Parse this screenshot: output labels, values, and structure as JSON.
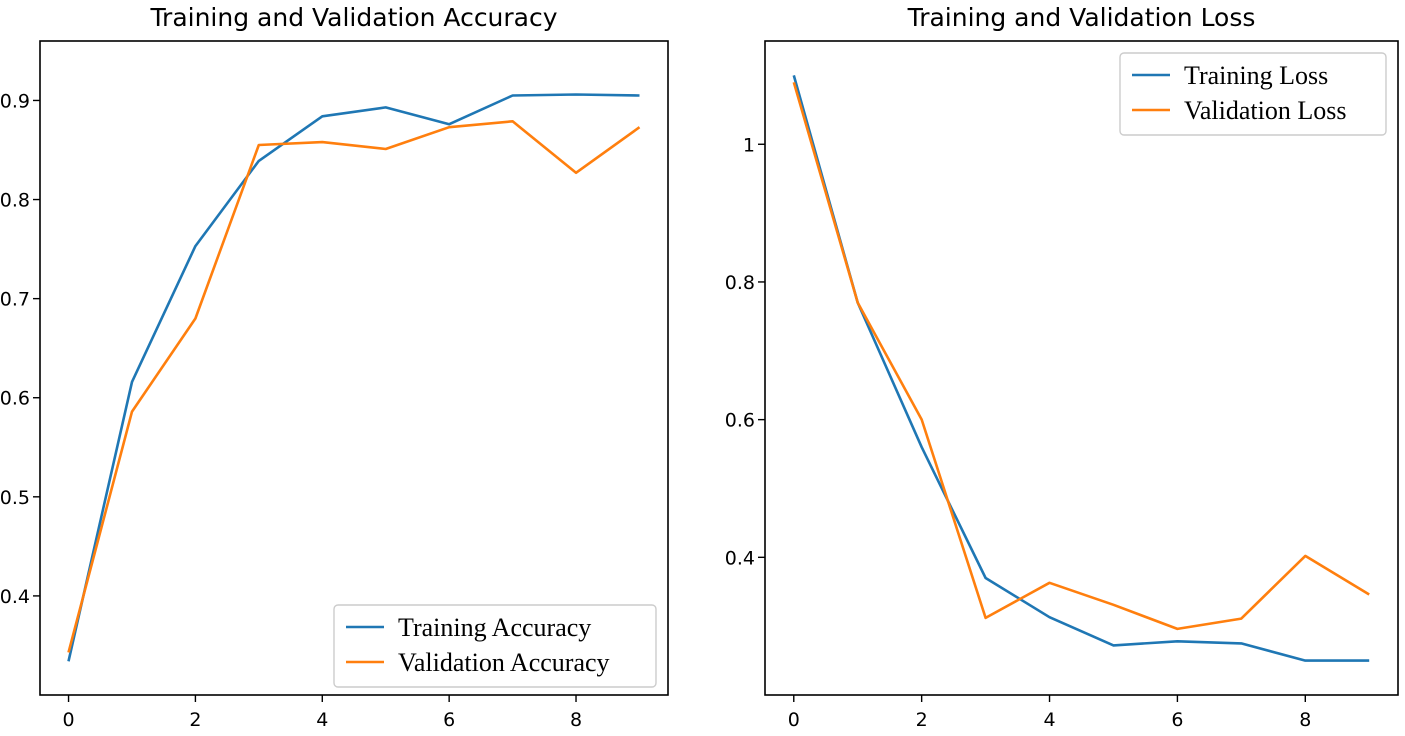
{
  "chart_data": [
    {
      "type": "line",
      "title": "Training and Validation Accuracy",
      "xlabel": "",
      "ylabel": "",
      "xlim": [
        -0.45,
        9.45
      ],
      "ylim": [
        0.3,
        0.96
      ],
      "xticks": [
        0,
        2,
        4,
        6,
        8
      ],
      "yticks": [
        0.4,
        0.5,
        0.6,
        0.7,
        0.8,
        0.9
      ],
      "x": [
        0,
        1,
        2,
        3,
        4,
        5,
        6,
        7,
        8,
        9
      ],
      "series": [
        {
          "name": "Training Accuracy",
          "color": "#1f77b4",
          "values": [
            0.334,
            0.616,
            0.753,
            0.839,
            0.884,
            0.893,
            0.876,
            0.905,
            0.906,
            0.905
          ]
        },
        {
          "name": "Validation Accuracy",
          "color": "#ff7f0e",
          "values": [
            0.343,
            0.586,
            0.68,
            0.855,
            0.858,
            0.851,
            0.873,
            0.879,
            0.827,
            0.873
          ]
        }
      ],
      "legend": "lower-right"
    },
    {
      "type": "line",
      "title": "Training and Validation Loss",
      "xlabel": "",
      "ylabel": "",
      "xlim": [
        -0.45,
        9.45
      ],
      "ylim": [
        0.2,
        1.15
      ],
      "xticks": [
        0,
        2,
        4,
        6,
        8
      ],
      "yticks": [
        0.4,
        0.6,
        0.8,
        1.0
      ],
      "x": [
        0,
        1,
        2,
        3,
        4,
        5,
        6,
        7,
        8,
        9
      ],
      "series": [
        {
          "name": "Training Loss",
          "color": "#1f77b4",
          "values": [
            1.1,
            0.77,
            0.56,
            0.37,
            0.313,
            0.272,
            0.278,
            0.275,
            0.25,
            0.25
          ]
        },
        {
          "name": "Validation Loss",
          "color": "#ff7f0e",
          "values": [
            1.09,
            0.77,
            0.6,
            0.312,
            0.363,
            0.331,
            0.296,
            0.311,
            0.402,
            0.346
          ]
        }
      ],
      "legend": "top-right"
    }
  ]
}
